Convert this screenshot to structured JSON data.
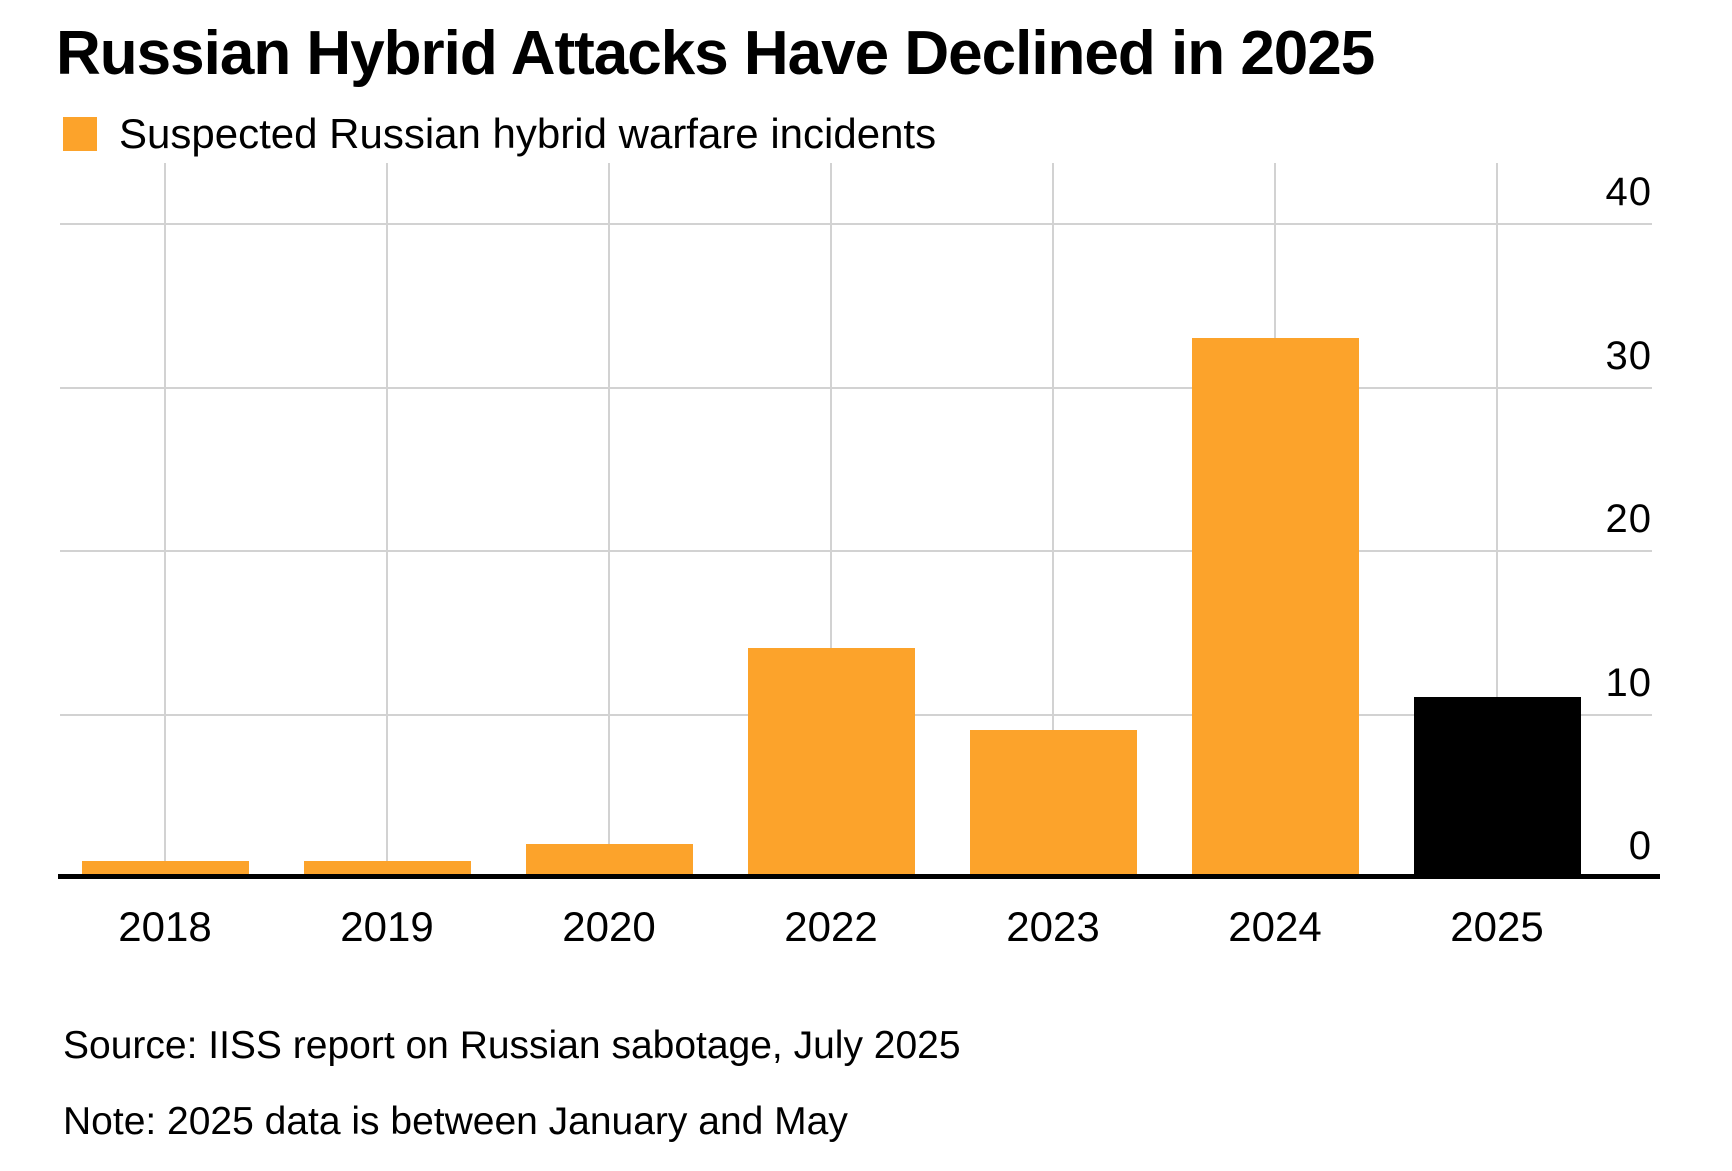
{
  "header": {
    "title": "Russian Hybrid Attacks Have Declined in 2025"
  },
  "legend": {
    "label": "Suspected Russian hybrid warfare incidents",
    "swatch_color": "#FCA32B"
  },
  "chart_data": {
    "type": "bar",
    "title": "Russian Hybrid Attacks Have Declined in 2025",
    "categories": [
      "2018",
      "2019",
      "2020",
      "2022",
      "2023",
      "2024",
      "2025"
    ],
    "series": [
      {
        "name": "Suspected Russian hybrid warfare incidents",
        "values": [
          1,
          1,
          2,
          14,
          9,
          33,
          11
        ]
      }
    ],
    "bar_colors": [
      "#FCA32B",
      "#FCA32B",
      "#FCA32B",
      "#FCA32B",
      "#FCA32B",
      "#FCA32B",
      "#000000"
    ],
    "xlabel": "",
    "ylabel": "",
    "ylim": [
      0,
      40
    ],
    "yticks": [
      0,
      10,
      20,
      30,
      40
    ],
    "y_axis_side": "right",
    "grid": true,
    "vertical_gridlines": true,
    "legend_position": "top-left",
    "source": "Source: IISS report on Russian sabotage, July 2025",
    "note": "Note: 2025 data is between January and May"
  },
  "footer": {
    "source": "Source: IISS report on Russian sabotage, July 2025",
    "note": "Note: 2025 data is between January and May"
  },
  "colors": {
    "bar_orange": "#FCA32B",
    "bar_black": "#000000",
    "gridline": "#D2D2D2",
    "axis": "#000000",
    "background": "#FFFFFF",
    "text": "#000000"
  }
}
